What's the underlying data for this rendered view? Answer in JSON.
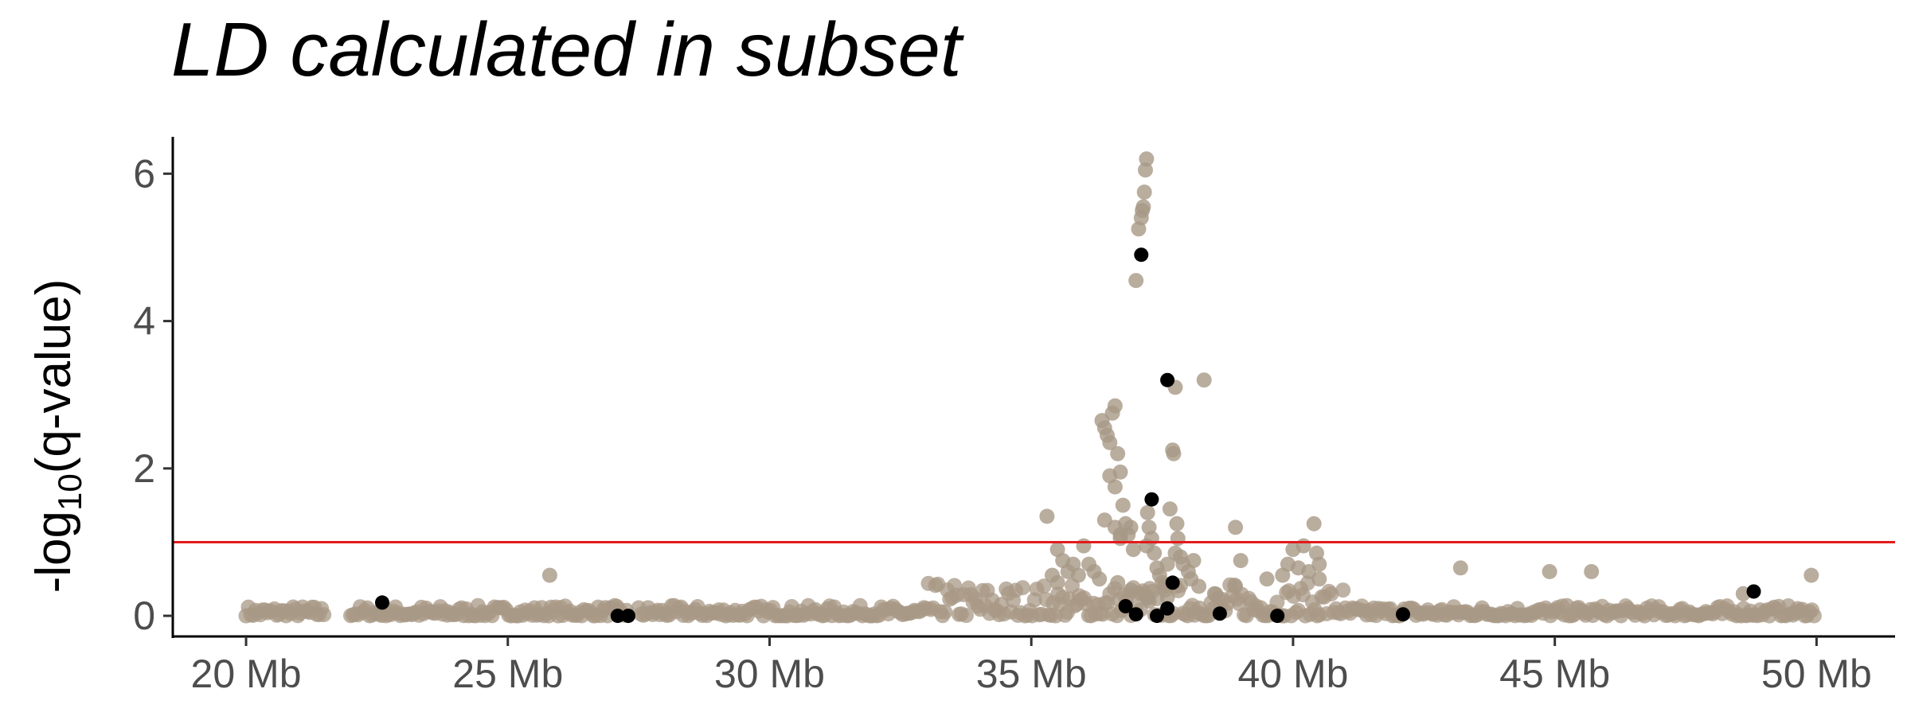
{
  "chart_data": {
    "type": "scatter",
    "title": "LD calculated in subset",
    "xlabel": "",
    "ylabel": {
      "prefix": "-log",
      "subscript": "10",
      "suffix": "(q-value)"
    },
    "xlim": [
      18.6,
      51.5
    ],
    "ylim": [
      -0.28,
      6.5
    ],
    "x_ticks": [
      20,
      25,
      30,
      35,
      40,
      45,
      50
    ],
    "x_tick_labels": [
      "20 Mb",
      "25 Mb",
      "30 Mb",
      "35 Mb",
      "40 Mb",
      "45 Mb",
      "50 Mb"
    ],
    "y_ticks": [
      0,
      2,
      4,
      6
    ],
    "y_tick_labels": [
      "0",
      "2",
      "4",
      "6"
    ],
    "threshold": {
      "y": 1,
      "color": "#e41a1c"
    },
    "grid": false,
    "legend": "none",
    "series": [
      {
        "color": "#a89886",
        "x": [
          35.3,
          35.5,
          35.6,
          35.7,
          35.8,
          35.9,
          36.0,
          36.1,
          36.2,
          36.3,
          36.35,
          36.4,
          36.45,
          36.5,
          36.55,
          36.6,
          36.65,
          36.7,
          36.75,
          36.8,
          36.85,
          36.9,
          36.95,
          37.0,
          37.05,
          37.1,
          37.12,
          37.14,
          37.16,
          37.18,
          37.2,
          37.22,
          37.25,
          37.3,
          37.35,
          37.4,
          37.45,
          37.5,
          37.55,
          37.6,
          37.65,
          37.7,
          37.72,
          37.75,
          37.78,
          37.8,
          37.85,
          37.9,
          38.0,
          38.05,
          38.1,
          38.2,
          38.3,
          38.5,
          38.9,
          39.0,
          39.5,
          39.8,
          39.9,
          40.0,
          40.1,
          40.2,
          40.3,
          40.4,
          40.45,
          40.5,
          35.4,
          35.5,
          36.5,
          36.6,
          36.7,
          37.2,
          37.6,
          37.75,
          38.9,
          40.5,
          25.8,
          43.2,
          44.9,
          45.7,
          49.9,
          48.6,
          36.4,
          36.6,
          36.7,
          36.65,
          36.9,
          37.1,
          37.2,
          37.25
        ],
        "y": [
          1.35,
          0.9,
          0.75,
          0.6,
          0.7,
          0.55,
          0.95,
          0.7,
          0.6,
          0.5,
          2.65,
          2.55,
          2.45,
          2.35,
          2.75,
          2.85,
          2.2,
          1.95,
          1.5,
          1.25,
          1.1,
          1.2,
          0.9,
          4.55,
          5.25,
          5.4,
          5.5,
          5.55,
          5.75,
          6.05,
          6.2,
          1.4,
          1.2,
          1.05,
          0.85,
          0.65,
          0.55,
          0.45,
          0.35,
          0.25,
          1.45,
          2.25,
          2.2,
          3.1,
          1.25,
          1.05,
          0.8,
          0.7,
          0.6,
          0.5,
          0.75,
          0.4,
          3.2,
          0.3,
          1.2,
          0.75,
          0.5,
          0.55,
          0.7,
          0.9,
          0.65,
          0.95,
          0.6,
          1.25,
          0.85,
          0.7,
          0.55,
          0.45,
          1.9,
          1.75,
          1.1,
          0.95,
          0.7,
          0.85,
          0.4,
          0.5,
          0.55,
          0.65,
          0.6,
          0.6,
          0.55,
          0.3,
          1.3,
          1.2,
          1.05,
          0.45,
          0.35,
          0.3,
          0.25,
          0.2
        ]
      },
      {
        "color": "#000000",
        "x": [
          22.6,
          27.1,
          27.3,
          36.8,
          37.0,
          37.1,
          37.3,
          37.4,
          37.6,
          37.6,
          37.7,
          38.6,
          39.7,
          42.1,
          48.8
        ],
        "y": [
          0.18,
          0.0,
          0.0,
          0.13,
          0.02,
          4.9,
          1.58,
          0.0,
          0.1,
          3.2,
          0.45,
          0.03,
          0.0,
          0.02,
          0.33
        ]
      }
    ]
  }
}
